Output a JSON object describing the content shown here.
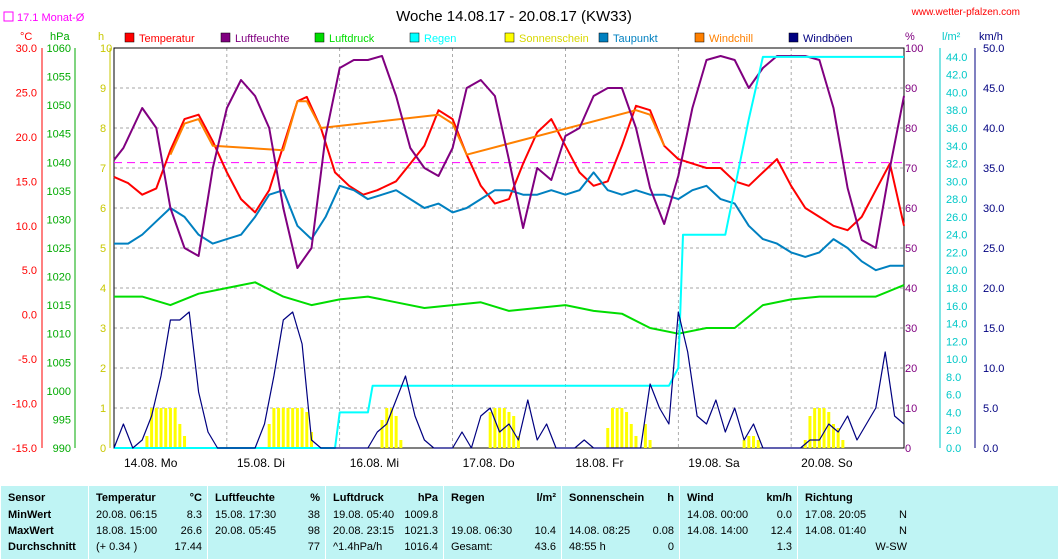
{
  "header": {
    "title": "Woche 14.08.17 - 20.08.17 (KW33)",
    "monthly_avg": "17.1 Monat-Ø",
    "site": "www.wetter-pfalzen.com"
  },
  "units_row": {
    "c": "°C",
    "hpa": "hPa",
    "h": "h",
    "pct": "%",
    "lm2": "l/m²",
    "kmh": "km/h"
  },
  "legend": [
    {
      "label": "Temperatur",
      "color": "#ff0000"
    },
    {
      "label": "Luftfeuchte",
      "color": "#800080"
    },
    {
      "label": "Luftdruck",
      "color": "#00dd00"
    },
    {
      "label": "Regen",
      "color": "#00ffff"
    },
    {
      "label": "Sonnenschein",
      "color": "#ffff00"
    },
    {
      "label": "Taupunkt",
      "color": "#0080c0"
    },
    {
      "label": "Windchill",
      "color": "#ff8000"
    },
    {
      "label": "Windböen",
      "color": "#000080"
    }
  ],
  "chart_data": {
    "type": "line",
    "title": "Woche 14.08.17 - 20.08.17 (KW33)",
    "x_labels": [
      "14.08. Mo",
      "15.08. Di",
      "16.08. Mi",
      "17.08. Do",
      "18.08. Fr",
      "19.08. Sa",
      "20.08. So"
    ],
    "x_range_hours": [
      0,
      168
    ],
    "axes": {
      "temperature_c": {
        "range": [
          -15,
          30
        ],
        "ticks": [
          "30.0",
          "25.0",
          "20.0",
          "15.0",
          "10.0",
          "5.0",
          "0.0",
          "-5.0",
          "-10.0",
          "-15.0"
        ],
        "color": "#ff0000"
      },
      "pressure_hpa": {
        "range": [
          990,
          1060
        ],
        "ticks": [
          "1060",
          "1055",
          "1050",
          "1045",
          "1040",
          "1035",
          "1030",
          "1025",
          "1020",
          "1015",
          "1010",
          "1005",
          "1000",
          "995",
          "990"
        ],
        "color": "#00aa00"
      },
      "sunshine_h": {
        "range": [
          0,
          10
        ],
        "ticks": [
          "10",
          "9",
          "8",
          "7",
          "6",
          "5",
          "4",
          "3",
          "2",
          "1",
          "0"
        ],
        "color": "#c8c800"
      },
      "humidity_pct": {
        "range": [
          0,
          100
        ],
        "ticks": [
          "100",
          "90",
          "80",
          "70",
          "60",
          "50",
          "40",
          "30",
          "20",
          "10",
          "0"
        ],
        "color": "#800080"
      },
      "rain_lm2": {
        "range": [
          0,
          45
        ],
        "ticks": [
          "44.0",
          "42.0",
          "40.0",
          "38.0",
          "36.0",
          "34.0",
          "32.0",
          "30.0",
          "28.0",
          "26.0",
          "24.0",
          "22.0",
          "20.0",
          "18.0",
          "16.0",
          "14.0",
          "12.0",
          "10.0",
          "8.0",
          "6.0",
          "4.0",
          "2.0",
          "0.0"
        ],
        "color": "#00c8c8"
      },
      "wind_kmh": {
        "range": [
          0,
          50
        ],
        "ticks": [
          "50.0",
          "45.0",
          "40.0",
          "35.0",
          "30.0",
          "25.0",
          "20.0",
          "15.0",
          "10.0",
          "5.0",
          "0.0"
        ],
        "color": "#000080"
      }
    },
    "monthly_avg_temp": 17.1,
    "series": [
      {
        "name": "Temperatur",
        "axis": "temperature_c",
        "color": "#ff0000",
        "x": [
          0,
          3,
          6,
          9,
          12,
          15,
          18,
          21,
          24,
          27,
          30,
          33,
          36,
          39,
          41,
          44,
          47,
          50,
          53,
          56,
          60,
          63,
          66,
          69,
          72,
          75,
          78,
          81,
          84,
          87,
          90,
          93,
          96,
          99,
          102,
          105,
          108,
          111,
          114,
          117,
          120,
          123,
          126,
          129,
          132,
          135,
          138,
          141,
          144,
          147,
          150,
          153,
          156,
          159,
          162,
          165,
          168
        ],
        "y": [
          15.5,
          14.8,
          13.5,
          14.2,
          18.5,
          22,
          22.5,
          19.5,
          16,
          13,
          11.5,
          14,
          19,
          24,
          24.5,
          21,
          16,
          14.5,
          13.5,
          14,
          15,
          17,
          19,
          23,
          22,
          18,
          14.5,
          12.5,
          13,
          17,
          20.5,
          22,
          19,
          16,
          14.5,
          15,
          19,
          23.5,
          23,
          19,
          17.5,
          17,
          16.5,
          16.5,
          15,
          14.5,
          16,
          17.5,
          14.5,
          12,
          11,
          10,
          9.5,
          11,
          14,
          17,
          10
        ]
      },
      {
        "name": "Windchill",
        "axis": "temperature_c",
        "color": "#ff8000",
        "x": [
          12,
          15,
          18,
          21,
          36,
          39,
          41,
          44,
          69,
          72,
          75,
          111,
          114,
          117
        ],
        "y": [
          18,
          21.5,
          22,
          19,
          18.5,
          24,
          24,
          21,
          22.5,
          21.5,
          18,
          23,
          22.5,
          19
        ]
      },
      {
        "name": "Taupunkt",
        "axis": "temperature_c",
        "color": "#0080c0",
        "x": [
          0,
          3,
          6,
          9,
          12,
          15,
          18,
          21,
          24,
          27,
          30,
          33,
          36,
          39,
          42,
          45,
          48,
          51,
          54,
          57,
          60,
          63,
          66,
          69,
          72,
          75,
          78,
          81,
          84,
          87,
          90,
          93,
          96,
          99,
          102,
          105,
          108,
          111,
          114,
          117,
          120,
          123,
          126,
          129,
          132,
          135,
          138,
          141,
          144,
          147,
          150,
          153,
          156,
          159,
          162,
          165,
          168
        ],
        "y": [
          8,
          8,
          9,
          10.5,
          12,
          11,
          9,
          8,
          8.5,
          9,
          11,
          13.5,
          14,
          10,
          8.5,
          11,
          14.5,
          14,
          13,
          13.5,
          14,
          13,
          12,
          12.5,
          11.5,
          12,
          13,
          14,
          14,
          13.5,
          13.5,
          14,
          13.5,
          14,
          16,
          14,
          13.5,
          14,
          13.5,
          13.5,
          13,
          14,
          14.5,
          13,
          12.5,
          10,
          8.5,
          8,
          7,
          6.5,
          7,
          8.5,
          7.5,
          6,
          5,
          5.5,
          5.5
        ]
      },
      {
        "name": "Luftfeuchte",
        "axis": "humidity_pct",
        "color": "#800080",
        "x": [
          0,
          2,
          4,
          6,
          9,
          12,
          15,
          18,
          21,
          24,
          27,
          30,
          33,
          36,
          39,
          42,
          45,
          48,
          51,
          54,
          57,
          60,
          63,
          66,
          69,
          72,
          75,
          78,
          81,
          84,
          87,
          90,
          93,
          96,
          99,
          102,
          105,
          108,
          111,
          114,
          117,
          120,
          123,
          126,
          129,
          132,
          135,
          138,
          141,
          144,
          147,
          150,
          153,
          156,
          159,
          162,
          165,
          168
        ],
        "y": [
          72,
          75,
          80,
          85,
          80,
          60,
          50,
          48,
          70,
          85,
          92,
          88,
          80,
          60,
          45,
          50,
          78,
          95,
          97,
          97,
          98,
          88,
          75,
          70,
          68,
          75,
          90,
          92,
          88,
          72,
          55,
          70,
          67,
          78,
          80,
          88,
          90,
          90,
          80,
          65,
          56,
          68,
          85,
          97,
          98,
          97,
          90,
          95,
          98,
          98,
          98,
          97,
          85,
          65,
          52,
          50,
          70,
          88
        ]
      },
      {
        "name": "Luftdruck",
        "axis": "pressure_hpa",
        "color": "#00dd00",
        "x": [
          0,
          6,
          12,
          18,
          24,
          30,
          36,
          42,
          48,
          54,
          60,
          66,
          72,
          78,
          84,
          90,
          96,
          102,
          108,
          114,
          120,
          126,
          132,
          138,
          144,
          150,
          156,
          162,
          168
        ],
        "y": [
          1016.5,
          1016.5,
          1015,
          1017,
          1018,
          1019,
          1016.5,
          1015,
          1016,
          1016.5,
          1015.5,
          1014.5,
          1015,
          1015.5,
          1014,
          1014.5,
          1015,
          1014,
          1013.5,
          1011,
          1010,
          1011,
          1011,
          1015,
          1016,
          1016.5,
          1016.5,
          1016.5,
          1018.5
        ]
      },
      {
        "name": "Regen",
        "axis": "rain_lm2",
        "color": "#00ffff",
        "x": [
          0,
          47,
          48,
          54,
          55,
          60,
          66,
          72,
          78,
          84,
          90,
          96,
          102,
          108,
          114,
          118,
          120,
          121,
          126,
          130,
          135,
          138,
          140,
          168
        ],
        "y": [
          0,
          0,
          4,
          4,
          7,
          7,
          7,
          7,
          7,
          7,
          7,
          7,
          7,
          7,
          7,
          7,
          9,
          24,
          24,
          24,
          37,
          44,
          44,
          44
        ]
      },
      {
        "name": "Windböen",
        "axis": "wind_kmh",
        "color": "#000080",
        "x": [
          0,
          2,
          4,
          6,
          8,
          10,
          12,
          14,
          16,
          18,
          20,
          22,
          24,
          26,
          28,
          30,
          32,
          34,
          36,
          38,
          40,
          42,
          44,
          46,
          48,
          50,
          52,
          54,
          56,
          58,
          60,
          62,
          64,
          66,
          68,
          70,
          72,
          74,
          76,
          78,
          80,
          82,
          84,
          86,
          88,
          90,
          92,
          94,
          96,
          98,
          100,
          102,
          104,
          106,
          108,
          110,
          112,
          114,
          116,
          118,
          120,
          122,
          124,
          126,
          128,
          130,
          132,
          134,
          136,
          138,
          140,
          142,
          144,
          146,
          148,
          150,
          152,
          154,
          156,
          158,
          160,
          162,
          164,
          166,
          168
        ],
        "y": [
          0,
          3,
          0,
          1,
          4,
          9,
          16,
          16,
          17,
          7,
          2,
          0,
          0,
          0,
          0,
          0,
          3,
          9,
          16,
          17,
          13,
          1,
          0,
          0,
          0,
          0,
          0,
          0,
          2,
          3,
          6,
          9,
          4,
          1,
          0,
          0,
          0,
          2,
          0,
          4,
          5,
          2,
          3,
          1,
          6,
          1,
          3,
          0,
          0,
          0,
          1,
          0,
          0,
          0,
          0,
          0,
          0,
          8,
          5,
          3,
          17,
          12,
          4,
          3,
          6,
          2,
          5,
          1,
          3,
          0,
          0,
          0,
          0,
          0,
          1,
          1,
          3,
          2,
          4,
          1,
          3,
          5,
          12,
          4,
          3
        ]
      }
    ],
    "sunshine_bars": {
      "axis": "sunshine_h",
      "color": "#ffff00",
      "unit": "h per hour-slot",
      "x": [
        7,
        8,
        9,
        10,
        11,
        12,
        13,
        14,
        15,
        33,
        34,
        35,
        36,
        37,
        38,
        39,
        40,
        41,
        42,
        57,
        58,
        59,
        60,
        61,
        80,
        81,
        82,
        83,
        84,
        85,
        86,
        105,
        106,
        107,
        108,
        109,
        110,
        111,
        113,
        114,
        134,
        135,
        136,
        137,
        147,
        148,
        149,
        150,
        151,
        152,
        153,
        154,
        155
      ],
      "y": [
        0.3,
        1,
        1,
        1,
        1,
        1,
        1,
        0.6,
        0.3,
        0.6,
        1,
        1,
        1,
        1,
        1,
        1,
        1,
        0.9,
        0.4,
        0.7,
        1,
        1,
        0.8,
        0.2,
        0.9,
        1,
        1,
        1,
        0.9,
        0.8,
        0.3,
        0.5,
        1,
        1,
        1,
        0.9,
        0.6,
        0.3,
        0.6,
        0.2,
        0.2,
        0.3,
        0.3,
        0.2,
        0.2,
        0.8,
        1,
        1,
        1,
        0.9,
        0.6,
        0.5,
        0.2
      ]
    }
  },
  "stats_table": {
    "columns": [
      {
        "title": "Sensor",
        "unit": "",
        "rows": [
          {
            "l": "MinWert",
            "r": ""
          },
          {
            "l": "MaxWert",
            "r": ""
          },
          {
            "l": "Durchschnitt",
            "r": ""
          }
        ]
      },
      {
        "title": "Temperatur",
        "unit": "°C",
        "rows": [
          {
            "l": "20.08.  06:15",
            "r": "8.3"
          },
          {
            "l": "18.08.  15:00",
            "r": "26.6"
          },
          {
            "l": "(+ 0.34 )",
            "r": "17.44"
          }
        ]
      },
      {
        "title": "Luftfeuchte",
        "unit": "%",
        "rows": [
          {
            "l": "15.08.  17:30",
            "r": "38"
          },
          {
            "l": "20.08.  05:45",
            "r": "98"
          },
          {
            "l": "",
            "r": "77"
          }
        ]
      },
      {
        "title": "Luftdruck",
        "unit": "hPa",
        "rows": [
          {
            "l": "19.08.  05:40",
            "r": "1009.8"
          },
          {
            "l": "20.08.  23:15",
            "r": "1021.3"
          },
          {
            "l": "^1.4hPa/h",
            "r": "1016.4"
          }
        ]
      },
      {
        "title": "Regen",
        "unit": "l/m²",
        "rows": [
          {
            "l": "",
            "r": ""
          },
          {
            "l": "19.08.  06:30",
            "r": "10.4"
          },
          {
            "l": "Gesamt:",
            "r": "43.6"
          }
        ]
      },
      {
        "title": "Sonnenschein",
        "unit": "h",
        "rows": [
          {
            "l": "",
            "r": ""
          },
          {
            "l": "14.08.  08:25",
            "r": "0.08"
          },
          {
            "l": "48:55 h",
            "r": "0"
          }
        ]
      },
      {
        "title": "Wind",
        "unit": "km/h",
        "rows": [
          {
            "l": "14.08.  00:00",
            "r": "0.0"
          },
          {
            "l": "14.08.  14:00",
            "r": "12.4"
          },
          {
            "l": "",
            "r": "1.3"
          }
        ]
      },
      {
        "title": "Richtung",
        "unit": "",
        "rows": [
          {
            "l": "17.08.  20:05",
            "r": "N"
          },
          {
            "l": "14.08.  01:40",
            "r": "N"
          },
          {
            "l": "",
            "r": "W-SW"
          }
        ]
      }
    ]
  }
}
